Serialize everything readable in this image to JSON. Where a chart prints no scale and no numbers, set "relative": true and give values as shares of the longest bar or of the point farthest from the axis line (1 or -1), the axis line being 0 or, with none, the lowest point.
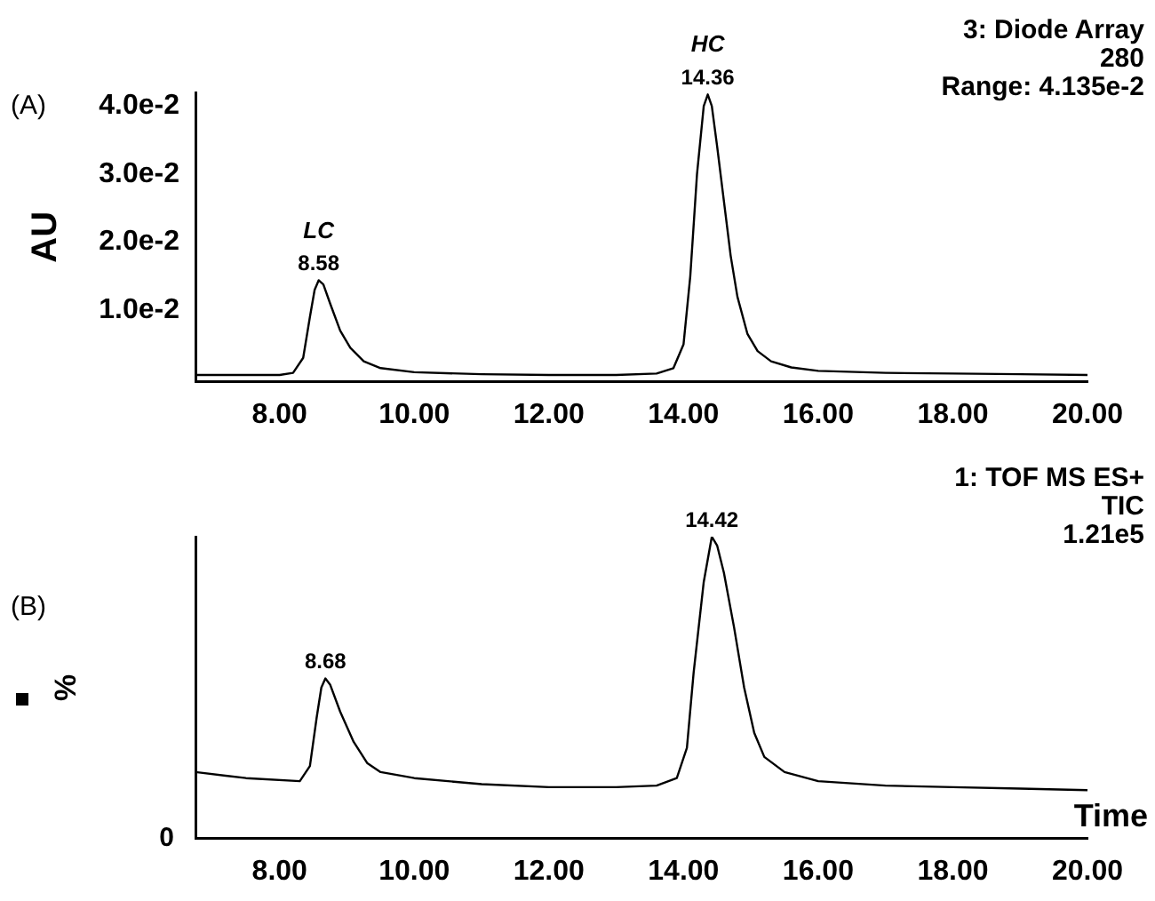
{
  "chart_data": [
    {
      "type": "line",
      "title": "(A)",
      "ylabel": "AU",
      "color": "#000000",
      "annotations": [
        "3: Diode Array",
        "280",
        "Range: 4.135e-2",
        {
          "text": "8.58",
          "x": 8.58,
          "y": 0.0144
        },
        {
          "text": "LC",
          "x": 8.58,
          "y": 0.0144
        },
        {
          "text": "14.36",
          "x": 14.36,
          "y": 0.0417
        },
        {
          "text": "HC",
          "x": 14.36,
          "y": 0.0417
        }
      ],
      "x": [
        6.75,
        8.0,
        8.2,
        8.35,
        8.45,
        8.52,
        8.58,
        8.65,
        8.75,
        8.9,
        9.05,
        9.25,
        9.5,
        10.0,
        11.0,
        12.0,
        13.0,
        13.6,
        13.85,
        14.0,
        14.1,
        14.2,
        14.3,
        14.36,
        14.42,
        14.5,
        14.6,
        14.7,
        14.8,
        14.95,
        15.1,
        15.3,
        15.6,
        16.0,
        17.0,
        18.0,
        19.0,
        20.0
      ],
      "values": [
        0.0005,
        0.0005,
        0.0008,
        0.003,
        0.009,
        0.013,
        0.0144,
        0.0138,
        0.011,
        0.007,
        0.0045,
        0.0025,
        0.0015,
        0.0009,
        0.0006,
        0.0005,
        0.0005,
        0.0007,
        0.0015,
        0.005,
        0.015,
        0.03,
        0.04,
        0.0417,
        0.04,
        0.034,
        0.026,
        0.018,
        0.012,
        0.0065,
        0.004,
        0.0025,
        0.0016,
        0.0011,
        0.0008,
        0.0007,
        0.0006,
        0.0005
      ],
      "xlim": [
        6.75,
        20.0
      ],
      "xticks": [
        {
          "value": 8,
          "label": "8.00"
        },
        {
          "value": 10,
          "label": "10.00"
        },
        {
          "value": 12,
          "label": "12.00"
        },
        {
          "value": 14,
          "label": "14.00"
        },
        {
          "value": 16,
          "label": "16.00"
        },
        {
          "value": 18,
          "label": "18.00"
        },
        {
          "value": 20,
          "label": "20.00"
        }
      ],
      "ylim": [
        -0.0005,
        0.042
      ],
      "yticks": [
        {
          "value": 0.01,
          "label": "1.0e-2"
        },
        {
          "value": 0.02,
          "label": "2.0e-2"
        },
        {
          "value": 0.03,
          "label": "3.0e-2"
        },
        {
          "value": 0.04,
          "label": "4.0e-2"
        }
      ]
    },
    {
      "type": "line",
      "title": "(B)",
      "ylabel": "%",
      "xlabel": "Time",
      "relative": true,
      "color": "#000000",
      "annotations": [
        "0",
        "1: TOF MS ES+",
        "TIC",
        "1.21e5",
        {
          "text": "8.68",
          "x": 8.68,
          "y": 0.53
        },
        {
          "text": "14.42",
          "x": 14.42,
          "y": 1.0
        }
      ],
      "x": [
        6.75,
        7.5,
        8.3,
        8.45,
        8.55,
        8.62,
        8.68,
        8.75,
        8.9,
        9.1,
        9.3,
        9.5,
        10.0,
        11.0,
        12.0,
        13.0,
        13.6,
        13.9,
        14.05,
        14.15,
        14.3,
        14.42,
        14.5,
        14.6,
        14.75,
        14.9,
        15.05,
        15.2,
        15.5,
        16.0,
        17.0,
        18.0,
        19.0,
        20.0
      ],
      "values": [
        0.22,
        0.2,
        0.19,
        0.24,
        0.4,
        0.5,
        0.53,
        0.51,
        0.42,
        0.32,
        0.25,
        0.22,
        0.2,
        0.18,
        0.17,
        0.17,
        0.175,
        0.2,
        0.3,
        0.55,
        0.85,
        1.0,
        0.97,
        0.88,
        0.7,
        0.5,
        0.35,
        0.27,
        0.22,
        0.19,
        0.175,
        0.17,
        0.165,
        0.16
      ],
      "xlim": [
        6.75,
        20.0
      ],
      "xticks": [
        {
          "value": 8,
          "label": "8.00"
        },
        {
          "value": 10,
          "label": "10.00"
        },
        {
          "value": 12,
          "label": "12.00"
        },
        {
          "value": 14,
          "label": "14.00"
        },
        {
          "value": 16,
          "label": "16.00"
        },
        {
          "value": 18,
          "label": "18.00"
        },
        {
          "value": 20,
          "label": "20.00"
        }
      ]
    }
  ]
}
